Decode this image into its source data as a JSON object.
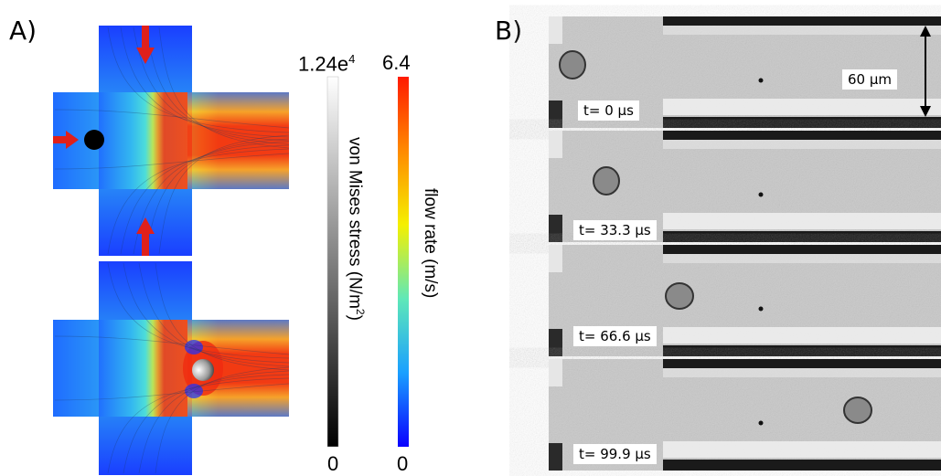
{
  "panels": {
    "a_label": "A)",
    "b_label": "B)"
  },
  "colorbar_stress": {
    "max": "1.24e",
    "max_exp": "4",
    "min": "0",
    "title": "von Mises stress (N/m",
    "title_exp": "2",
    "title_close": ")"
  },
  "colorbar_flow": {
    "max": "6.4",
    "min": "0",
    "title": "flow rate (m/s)"
  },
  "frames": [
    {
      "time": "t= 0 µs"
    },
    {
      "time": "t= 33.3 µs"
    },
    {
      "time": "t= 66.6 µs"
    },
    {
      "time": "t= 99.9 µs"
    }
  ],
  "scale_bar": {
    "label": "60 µm"
  },
  "colors": {
    "inlet_arrow": "#e0201b",
    "flow_low": "#1a4fff",
    "flow_high": "#f23a12",
    "channel_bg": "#c9c9c9"
  }
}
